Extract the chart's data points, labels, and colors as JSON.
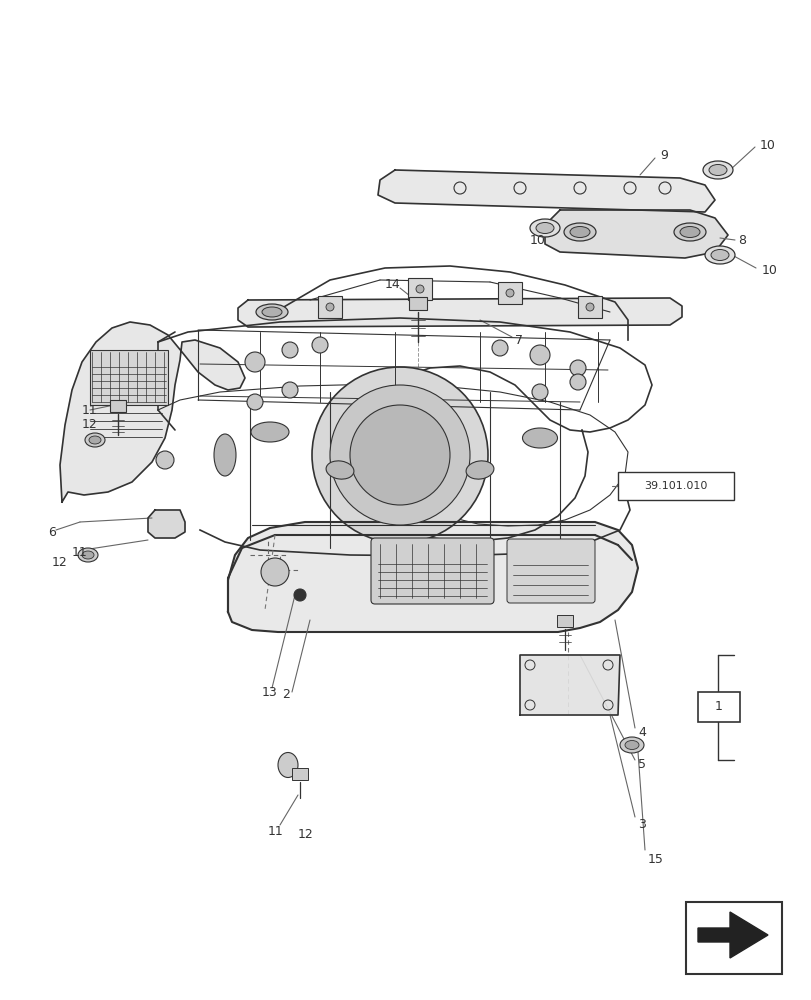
{
  "bg_color": "#ffffff",
  "line_color": "#333333",
  "fig_width": 8.12,
  "fig_height": 10.0,
  "dpi": 100
}
